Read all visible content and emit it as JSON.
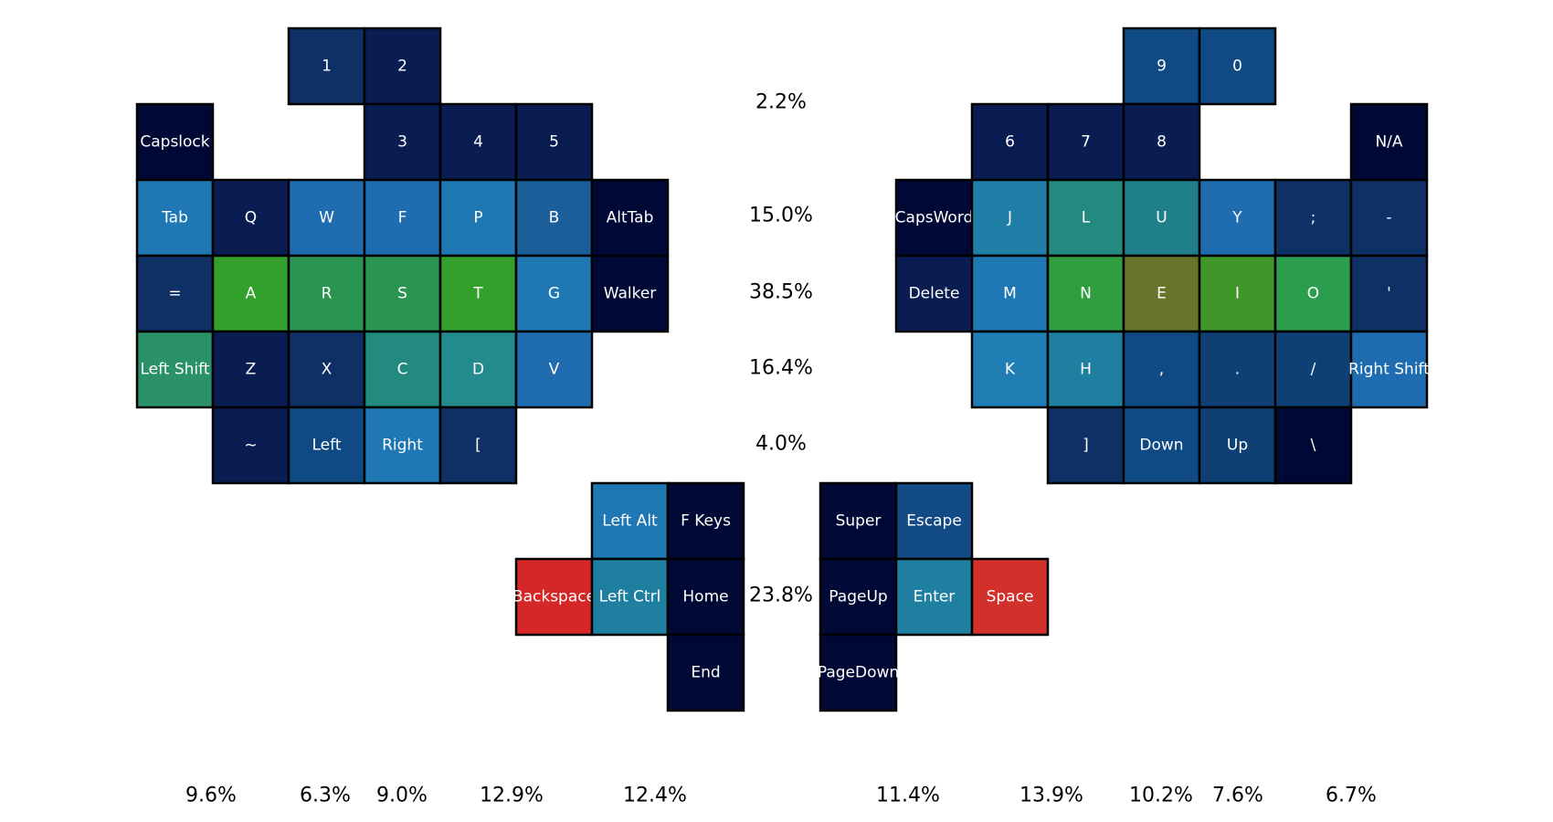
{
  "chart_data": {
    "type": "heatmap",
    "title": "",
    "keys": [
      {
        "label": "1",
        "color": "#0e3065"
      },
      {
        "label": "2",
        "color": "#0a1d52"
      },
      {
        "label": "Capslock",
        "color": "#000835"
      },
      {
        "label": "3",
        "color": "#0a1d52"
      },
      {
        "label": "4",
        "color": "#0a1d52"
      },
      {
        "label": "5",
        "color": "#0a1d52"
      },
      {
        "label": "Tab",
        "color": "#1f78b4"
      },
      {
        "label": "Q",
        "color": "#0a1d52"
      },
      {
        "label": "W",
        "color": "#1f6db0"
      },
      {
        "label": "F",
        "color": "#1f6db0"
      },
      {
        "label": "P",
        "color": "#1f78b4"
      },
      {
        "label": "B",
        "color": "#1a5e9a"
      },
      {
        "label": "AltTab",
        "color": "#000835"
      },
      {
        "label": "=",
        "color": "#0e3065"
      },
      {
        "label": "A",
        "color": "#33a02c"
      },
      {
        "label": "R",
        "color": "#2a9553"
      },
      {
        "label": "S",
        "color": "#2a9553"
      },
      {
        "label": "T",
        "color": "#33a02c"
      },
      {
        "label": "G",
        "color": "#1f78b4"
      },
      {
        "label": "Walker",
        "color": "#000835"
      },
      {
        "label": "Left Shift",
        "color": "#2a9168"
      },
      {
        "label": "Z",
        "color": "#0a1d52"
      },
      {
        "label": "X",
        "color": "#0e3065"
      },
      {
        "label": "C",
        "color": "#238a80"
      },
      {
        "label": "D",
        "color": "#238a8d"
      },
      {
        "label": "V",
        "color": "#1f6db0"
      },
      {
        "label": "~",
        "color": "#0a1d52"
      },
      {
        "label": "Left",
        "color": "#104a85"
      },
      {
        "label": "Right",
        "color": "#1f78b4"
      },
      {
        "label": "[",
        "color": "#0e3065"
      },
      {
        "label": "Left Alt",
        "color": "#1f78b4"
      },
      {
        "label": "F Keys",
        "color": "#000835"
      },
      {
        "label": "Backspace",
        "color": "#d62728"
      },
      {
        "label": "Left Ctrl",
        "color": "#1f7fa1"
      },
      {
        "label": "Home",
        "color": "#000835"
      },
      {
        "label": "End",
        "color": "#000835"
      },
      {
        "label": "9",
        "color": "#104a85"
      },
      {
        "label": "0",
        "color": "#104a85"
      },
      {
        "label": "6",
        "color": "#0a1d52"
      },
      {
        "label": "7",
        "color": "#0a1d52"
      },
      {
        "label": "8",
        "color": "#0a1d52"
      },
      {
        "label": "N/A",
        "color": "#000835"
      },
      {
        "label": "CapsWord",
        "color": "#000835"
      },
      {
        "label": "J",
        "color": "#1f7fa6"
      },
      {
        "label": "L",
        "color": "#238a80"
      },
      {
        "label": "U",
        "color": "#1f808c"
      },
      {
        "label": "Y",
        "color": "#1f6db0"
      },
      {
        "label": ";",
        "color": "#0e3065"
      },
      {
        "label": "-",
        "color": "#0e3065"
      },
      {
        "label": "Delete",
        "color": "#0a1d52"
      },
      {
        "label": "M",
        "color": "#1f78b4"
      },
      {
        "label": "N",
        "color": "#2e9e3e"
      },
      {
        "label": "E",
        "color": "#68742b"
      },
      {
        "label": "I",
        "color": "#3f972b"
      },
      {
        "label": "O",
        "color": "#2a9d4f"
      },
      {
        "label": "'",
        "color": "#0e3065"
      },
      {
        "label": "K",
        "color": "#1f7fb4"
      },
      {
        "label": "H",
        "color": "#1f7fa1"
      },
      {
        "label": ",",
        "color": "#104a85"
      },
      {
        "label": ".",
        "color": "#0e3f75"
      },
      {
        "label": "/",
        "color": "#0e3f75"
      },
      {
        "label": "Right Shift",
        "color": "#1f6db0"
      },
      {
        "label": "]",
        "color": "#0e3065"
      },
      {
        "label": "Down",
        "color": "#104a85"
      },
      {
        "label": "Up",
        "color": "#0e3f75"
      },
      {
        "label": "\\",
        "color": "#000835"
      },
      {
        "label": "Super",
        "color": "#000835"
      },
      {
        "label": "Escape",
        "color": "#124b85"
      },
      {
        "label": "PageUp",
        "color": "#000835"
      },
      {
        "label": "Enter",
        "color": "#1f7fa1"
      },
      {
        "label": "Space",
        "color": "#d1302b"
      },
      {
        "label": "PageDown",
        "color": "#000835"
      }
    ],
    "row_percentages": [
      "2.2%",
      "15.0%",
      "38.5%",
      "16.4%",
      "4.0%",
      "23.8%"
    ],
    "column_percentages": [
      "9.6%",
      "6.3%",
      "9.0%",
      "12.9%",
      "12.4%",
      "11.4%",
      "13.9%",
      "10.2%",
      "7.6%",
      "6.7%"
    ]
  }
}
